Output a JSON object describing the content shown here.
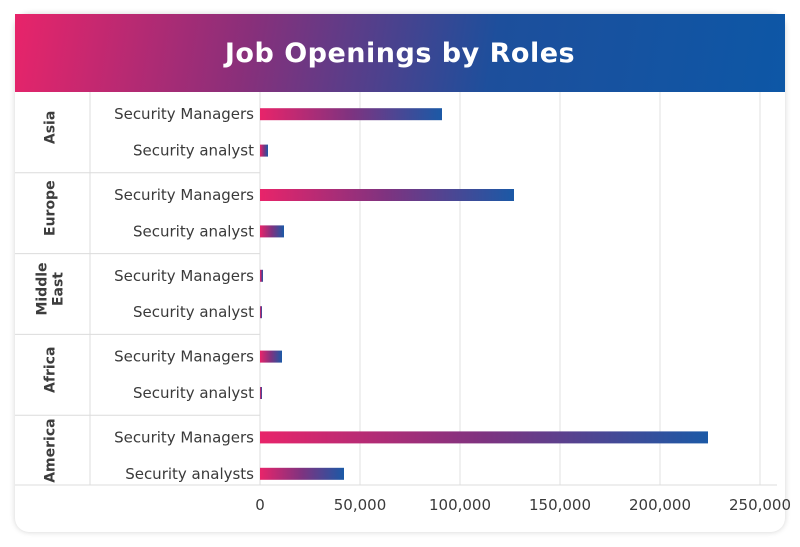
{
  "chart_data": {
    "type": "bar",
    "orientation": "horizontal",
    "title": "Job Openings by Roles",
    "xlim": [
      0,
      250000
    ],
    "x_ticks": [
      "0",
      "50,000",
      "100,000",
      "150,000",
      "200,000",
      "250,000"
    ],
    "x_tick_values": [
      0,
      50000,
      100000,
      150000,
      200000,
      250000
    ],
    "grid": true,
    "colors": {
      "bar_start": "#e8246a",
      "bar_mid": "#7e3380",
      "bar_end": "#1b59a6"
    },
    "groups": [
      {
        "name": "Asia",
        "name_lines": [
          "Asia"
        ],
        "rows": [
          {
            "label": "Security Managers",
            "value": 91000
          },
          {
            "label": "Security analyst",
            "value": 4000
          }
        ]
      },
      {
        "name": "Europe",
        "name_lines": [
          "Europe"
        ],
        "rows": [
          {
            "label": "Security Managers",
            "value": 127000
          },
          {
            "label": "Security analyst",
            "value": 12000
          }
        ]
      },
      {
        "name": "Middle East",
        "name_lines": [
          "Middle",
          "East"
        ],
        "rows": [
          {
            "label": "Security Managers",
            "value": 1500
          },
          {
            "label": "Security analyst",
            "value": 800
          }
        ]
      },
      {
        "name": "Africa",
        "name_lines": [
          "Africa"
        ],
        "rows": [
          {
            "label": "Security Managers",
            "value": 11000
          },
          {
            "label": "Security analyst",
            "value": 800
          }
        ]
      },
      {
        "name": "America",
        "name_lines": [
          "America"
        ],
        "rows": [
          {
            "label": "Security Managers",
            "value": 224000
          },
          {
            "label": "Security analysts",
            "value": 42000
          }
        ]
      }
    ]
  }
}
